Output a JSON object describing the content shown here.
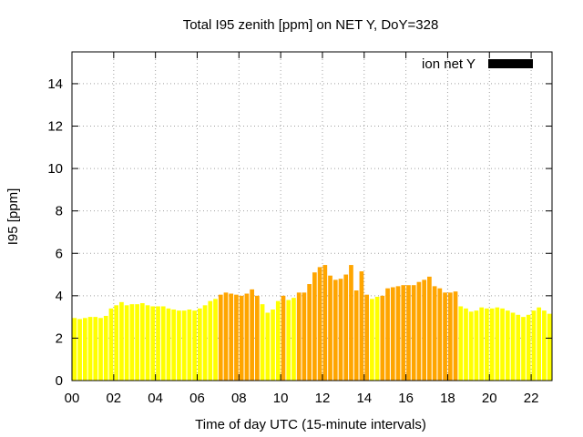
{
  "chart_data": {
    "type": "bar",
    "title": "Total I95 zenith [ppm] on NET Y, DoY=328",
    "xlabel": "Time of day UTC (15-minute intervals)",
    "ylabel": "I95 [ppm]",
    "xlim": [
      0,
      23
    ],
    "ylim": [
      0,
      15.5
    ],
    "xticks": [
      "00",
      "02",
      "04",
      "06",
      "08",
      "10",
      "12",
      "14",
      "16",
      "18",
      "20",
      "22"
    ],
    "yticks": [
      "0",
      "2",
      "4",
      "6",
      "8",
      "10",
      "12",
      "14"
    ],
    "grid": true,
    "legend": {
      "label": "ion net Y",
      "color": "#000000",
      "position": "top-right"
    },
    "colors": {
      "low": "#ffff00",
      "medium": "#ffa500"
    },
    "interval_hours": 0.25,
    "bars": [
      {
        "t": 0.0,
        "v": 2.95
      },
      {
        "t": 0.25,
        "v": 2.9
      },
      {
        "t": 0.5,
        "v": 2.95
      },
      {
        "t": 0.75,
        "v": 3.0
      },
      {
        "t": 1.0,
        "v": 3.0
      },
      {
        "t": 1.25,
        "v": 2.95
      },
      {
        "t": 1.5,
        "v": 3.05
      },
      {
        "t": 1.75,
        "v": 3.4
      },
      {
        "t": 2.0,
        "v": 3.55
      },
      {
        "t": 2.25,
        "v": 3.7
      },
      {
        "t": 2.5,
        "v": 3.55
      },
      {
        "t": 2.75,
        "v": 3.6
      },
      {
        "t": 3.0,
        "v": 3.6
      },
      {
        "t": 3.25,
        "v": 3.65
      },
      {
        "t": 3.5,
        "v": 3.55
      },
      {
        "t": 3.75,
        "v": 3.5
      },
      {
        "t": 4.0,
        "v": 3.5
      },
      {
        "t": 4.25,
        "v": 3.5
      },
      {
        "t": 4.5,
        "v": 3.4
      },
      {
        "t": 4.75,
        "v": 3.35
      },
      {
        "t": 5.0,
        "v": 3.3
      },
      {
        "t": 5.25,
        "v": 3.3
      },
      {
        "t": 5.5,
        "v": 3.35
      },
      {
        "t": 5.75,
        "v": 3.3
      },
      {
        "t": 6.0,
        "v": 3.4
      },
      {
        "t": 6.25,
        "v": 3.55
      },
      {
        "t": 6.5,
        "v": 3.75
      },
      {
        "t": 6.75,
        "v": 3.85
      },
      {
        "t": 7.0,
        "v": 4.05
      },
      {
        "t": 7.25,
        "v": 4.15
      },
      {
        "t": 7.5,
        "v": 4.1
      },
      {
        "t": 7.75,
        "v": 4.05
      },
      {
        "t": 8.0,
        "v": 4.0
      },
      {
        "t": 8.25,
        "v": 4.1
      },
      {
        "t": 8.5,
        "v": 4.3
      },
      {
        "t": 8.75,
        "v": 4.0
      },
      {
        "t": 9.0,
        "v": 3.6
      },
      {
        "t": 9.25,
        "v": 3.2
      },
      {
        "t": 9.5,
        "v": 3.35
      },
      {
        "t": 9.75,
        "v": 3.75
      },
      {
        "t": 10.0,
        "v": 4.0
      },
      {
        "t": 10.25,
        "v": 3.8
      },
      {
        "t": 10.5,
        "v": 3.9
      },
      {
        "t": 10.75,
        "v": 4.15
      },
      {
        "t": 11.0,
        "v": 4.15
      },
      {
        "t": 11.25,
        "v": 4.55
      },
      {
        "t": 11.5,
        "v": 5.1
      },
      {
        "t": 11.75,
        "v": 5.35
      },
      {
        "t": 12.0,
        "v": 5.45
      },
      {
        "t": 12.25,
        "v": 4.95
      },
      {
        "t": 12.5,
        "v": 4.75
      },
      {
        "t": 12.75,
        "v": 4.8
      },
      {
        "t": 13.0,
        "v": 5.0
      },
      {
        "t": 13.25,
        "v": 5.45
      },
      {
        "t": 13.5,
        "v": 4.25
      },
      {
        "t": 13.75,
        "v": 5.15
      },
      {
        "t": 14.0,
        "v": 4.05
      },
      {
        "t": 14.25,
        "v": 3.85
      },
      {
        "t": 14.5,
        "v": 3.95
      },
      {
        "t": 14.75,
        "v": 4.0
      },
      {
        "t": 15.0,
        "v": 4.35
      },
      {
        "t": 15.25,
        "v": 4.4
      },
      {
        "t": 15.5,
        "v": 4.45
      },
      {
        "t": 15.75,
        "v": 4.5
      },
      {
        "t": 16.0,
        "v": 4.5
      },
      {
        "t": 16.25,
        "v": 4.5
      },
      {
        "t": 16.5,
        "v": 4.65
      },
      {
        "t": 16.75,
        "v": 4.75
      },
      {
        "t": 17.0,
        "v": 4.9
      },
      {
        "t": 17.25,
        "v": 4.45
      },
      {
        "t": 17.5,
        "v": 4.35
      },
      {
        "t": 17.75,
        "v": 4.15
      },
      {
        "t": 18.0,
        "v": 4.15
      },
      {
        "t": 18.25,
        "v": 4.2
      },
      {
        "t": 18.5,
        "v": 3.5
      },
      {
        "t": 18.75,
        "v": 3.4
      },
      {
        "t": 19.0,
        "v": 3.25
      },
      {
        "t": 19.25,
        "v": 3.3
      },
      {
        "t": 19.5,
        "v": 3.45
      },
      {
        "t": 19.75,
        "v": 3.4
      },
      {
        "t": 20.0,
        "v": 3.4
      },
      {
        "t": 20.25,
        "v": 3.45
      },
      {
        "t": 20.5,
        "v": 3.4
      },
      {
        "t": 20.75,
        "v": 3.3
      },
      {
        "t": 21.0,
        "v": 3.2
      },
      {
        "t": 21.25,
        "v": 3.1
      },
      {
        "t": 21.5,
        "v": 3.0
      },
      {
        "t": 21.75,
        "v": 3.1
      },
      {
        "t": 22.0,
        "v": 3.3
      },
      {
        "t": 22.25,
        "v": 3.45
      },
      {
        "t": 22.5,
        "v": 3.3
      },
      {
        "t": 22.75,
        "v": 3.15
      }
    ]
  }
}
